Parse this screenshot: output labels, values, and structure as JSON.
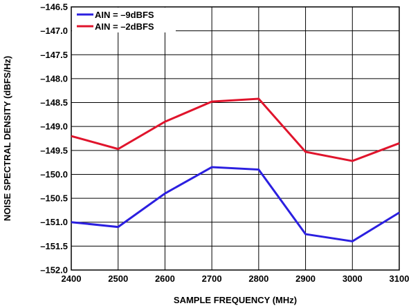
{
  "chart_data": {
    "type": "line",
    "title": "",
    "xlabel": "SAMPLE FREQUENCY (MHz)",
    "ylabel": "NOISE SPECTRAL DENSITY (dBFS/Hz)",
    "xlim": [
      2400,
      3100
    ],
    "ylim": [
      -152.0,
      -146.5
    ],
    "x_ticks": [
      2400,
      2500,
      2600,
      2700,
      2800,
      2900,
      3000,
      3100
    ],
    "x_tick_labels": [
      "2400",
      "2500",
      "2600",
      "2700",
      "2800",
      "2900",
      "3000",
      "3100"
    ],
    "y_ticks": [
      -146.5,
      -147.0,
      -147.5,
      -148.0,
      -148.5,
      -149.0,
      -149.5,
      -150.0,
      -150.5,
      -151.0,
      -151.5,
      -152.0
    ],
    "y_tick_labels": [
      "–146.5",
      "–147.0",
      "–147.5",
      "–148.0",
      "–148.5",
      "–149.0",
      "–149.5",
      "–150.0",
      "–150.5",
      "–151.0",
      "–151.5",
      "–152.0"
    ],
    "grid": true,
    "legend_position": "top-left",
    "x": [
      2400,
      2500,
      2600,
      2700,
      2800,
      2900,
      3000,
      3100
    ],
    "series": [
      {
        "name": "AIN = –9dBFS",
        "color": "#2b1fe0",
        "values": [
          -151.0,
          -151.1,
          -150.4,
          -149.85,
          -149.9,
          -151.25,
          -151.4,
          -150.8
        ]
      },
      {
        "name": "AIN = –2dBFS",
        "color": "#e0142c",
        "values": [
          -149.2,
          -149.47,
          -148.9,
          -148.48,
          -148.42,
          -149.53,
          -149.72,
          -149.35
        ]
      }
    ]
  }
}
